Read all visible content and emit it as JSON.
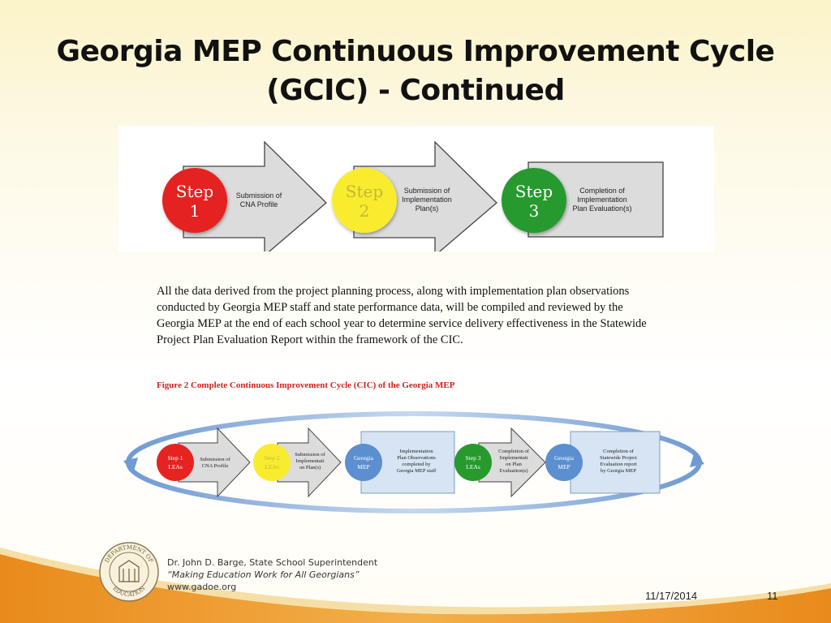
{
  "slide": {
    "title_line1": "Georgia MEP Continuous Improvement Cycle",
    "title_line2": "(GCIC) - Continued",
    "body": "All the data derived from the project planning process, along with implementation plan observations conducted by Georgia MEP staff and state performance data, will be compiled and reviewed by the Georgia MEP at the end of each school year to determine service delivery effectiveness in the Statewide Project Plan Evaluation Report within the framework of the CIC.",
    "figure_caption": "Figure 2 Complete Continuous Improvement Cycle (CIC) of the Georgia MEP"
  },
  "steps_diagram": {
    "steps": [
      {
        "word": "Step",
        "num": "1",
        "line1": "Submission of",
        "line2": "CNA Profile",
        "line3": "",
        "color": "#e52421",
        "text_color": "#ffffff"
      },
      {
        "word": "Step",
        "num": "2",
        "line1": "Submission of",
        "line2": "Implementation",
        "line3": "Plan(s)",
        "color": "#f9ec2e",
        "text_color": "#c8b43c"
      },
      {
        "word": "Step",
        "num": "3",
        "line1": "Completion of",
        "line2": "Implementation",
        "line3": "Plan Evaluation(s)",
        "color": "#279a2e",
        "text_color": "#ffffff"
      }
    ]
  },
  "cycle_diagram": {
    "step1": {
      "line1": "Step 1",
      "line2": "LEAs",
      "desc1": "Submission of",
      "desc2": "CNA Profile"
    },
    "step2": {
      "line1": "Step 2",
      "line2": "LEAs",
      "desc1": "Submission of",
      "desc2": "Implementati",
      "desc3": "on Plan(s)"
    },
    "mep1": {
      "line1": "Georgia",
      "line2": "MEP",
      "box1": "Implementation",
      "box2": "Plan Observations",
      "box3": "completed by",
      "box4": "Georgia MEP staff"
    },
    "step3": {
      "line1": "Step 3",
      "line2": "LEAs",
      "desc1": "Completion of",
      "desc2": "Implementati",
      "desc3": "on Plan",
      "desc4": "Evaluation(s)"
    },
    "mep2": {
      "line1": "Georgia",
      "line2": "MEP",
      "box1": "Completion of",
      "box2": "Statewide Project",
      "box3": "Evaluation report",
      "box4": "by Georgia MEP"
    }
  },
  "footer": {
    "superintendent": "Dr. John D. Barge, State School Superintendent",
    "slogan": "“Making Education Work for All Georgians”",
    "website": "www.gadoe.org",
    "seal_top": "DEPARTMENT OF",
    "seal_bottom": "EDUCATION",
    "date": "11/17/2014",
    "page": "11"
  },
  "colors": {
    "red": "#e52421",
    "yellow": "#f9ec2e",
    "green": "#279a2e",
    "blue": "#5b8fd0",
    "arrow_gray": "#dcdcdc",
    "caption_red": "#d8201c",
    "footer_orange": "#e98a1c"
  }
}
